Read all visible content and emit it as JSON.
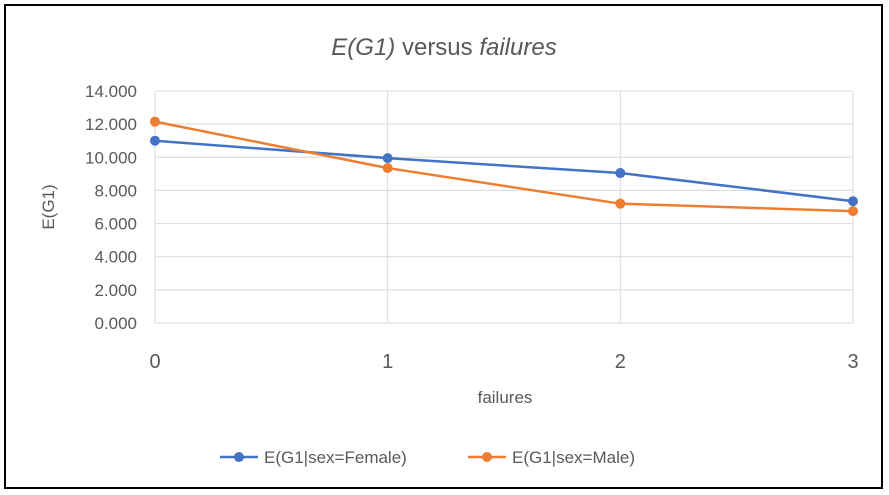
{
  "chart_data": {
    "type": "line",
    "title": {
      "part1": "E(G1)",
      "part2": " versus ",
      "part3": "failures"
    },
    "xlabel": "failures",
    "ylabel": "E(G1)",
    "x": [
      0,
      1,
      2,
      3
    ],
    "x_tick_labels": [
      "0",
      "1",
      "2",
      "3"
    ],
    "ylim": [
      0,
      14
    ],
    "y_ticks": [
      0,
      2,
      4,
      6,
      8,
      10,
      12,
      14
    ],
    "y_tick_labels": [
      "0.000",
      "2.000",
      "4.000",
      "6.000",
      "8.000",
      "10.000",
      "12.000",
      "14.000"
    ],
    "grid": "vertical and horizontal",
    "legend_position": "bottom",
    "series": [
      {
        "name": "E(G1|sex=Female)",
        "color": "#4472c4",
        "values": [
          11.0,
          9.95,
          9.05,
          7.35
        ]
      },
      {
        "name": "E(G1|sex=Male)",
        "color": "#ed7d31",
        "values": [
          12.15,
          9.35,
          7.2,
          6.75
        ]
      }
    ]
  }
}
